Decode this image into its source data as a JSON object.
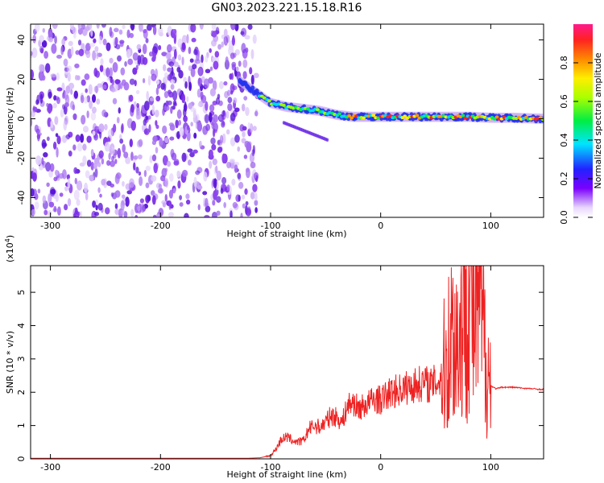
{
  "title": "GN03.2023.221.15.18.R16",
  "colors": {
    "signal": "#ee2222",
    "axis": "#000000",
    "noise": "#7a2ee6"
  },
  "chart_data": [
    {
      "type": "heatmap",
      "title": "GN03.2023.221.15.18.R16",
      "xlabel": "Height of straight line (km)",
      "ylabel": "Frequency (Hz)",
      "xlim": [
        -318,
        148
      ],
      "ylim": [
        -50,
        48
      ],
      "x_ticks": [
        -300,
        -200,
        -100,
        0,
        100
      ],
      "x_tick_labels": [
        "-300",
        "-200",
        "-100",
        "0",
        "100"
      ],
      "y_ticks": [
        -40,
        -20,
        0,
        20,
        40
      ],
      "y_tick_labels": [
        "-40",
        "-20",
        "0",
        "20",
        "40"
      ],
      "colorbar": {
        "label": "Normalized spectral amplitude",
        "range": [
          0,
          1
        ],
        "ticks": [
          0.0,
          0.2,
          0.4,
          0.6,
          0.8
        ],
        "tick_labels": [
          "0.0",
          "0.2",
          "0.4",
          "0.6",
          "0.8"
        ]
      },
      "ridge": {
        "x": [
          -130,
          -115,
          -100,
          -85,
          -70,
          -55,
          -40,
          -25,
          -10,
          0,
          20,
          40,
          60,
          80,
          100,
          120,
          148
        ],
        "freq": [
          20,
          14,
          8,
          6,
          5,
          4,
          2,
          1,
          1,
          1,
          1,
          1,
          1,
          1,
          0.5,
          0.5,
          0
        ]
      },
      "noise_band_x": [
        -318,
        -112
      ]
    },
    {
      "type": "line",
      "xlabel": "Height of straight line (km)",
      "ylabel": "SNR (10 * v/v)",
      "y_scale_note": "(x10",
      "y_scale_exp": "4",
      "y_scale_close": ")",
      "xlim": [
        -318,
        148
      ],
      "ylim": [
        0,
        5.8
      ],
      "x_ticks": [
        -300,
        -200,
        -100,
        0,
        100
      ],
      "x_tick_labels": [
        "-300",
        "-200",
        "-100",
        "0",
        "100"
      ],
      "y_ticks": [
        0,
        1,
        2,
        3,
        4,
        5
      ],
      "y_tick_labels": [
        "0",
        "1",
        "2",
        "3",
        "4",
        "5"
      ],
      "series": [
        {
          "x": [
            -318,
            -120,
            -110,
            -100,
            -95,
            -90,
            -85,
            -80,
            -75,
            -70,
            -65,
            -60,
            -55,
            -50,
            -45,
            -40,
            -35,
            -30,
            -25,
            -20,
            -15,
            -10,
            -5,
            0,
            5,
            10,
            20,
            30,
            40,
            45,
            50,
            55,
            60,
            65,
            70,
            75,
            80,
            85,
            90,
            95,
            100,
            105,
            110,
            120,
            130,
            140,
            148
          ],
          "y": [
            0.02,
            0.02,
            0.03,
            0.1,
            0.3,
            0.6,
            0.65,
            0.55,
            0.5,
            0.55,
            0.9,
            1.0,
            0.95,
            1.1,
            1.3,
            1.25,
            1.1,
            1.6,
            1.7,
            1.5,
            1.6,
            1.7,
            1.8,
            1.75,
            1.9,
            2.0,
            2.1,
            2.2,
            2.3,
            2.2,
            2.3,
            2.4,
            3.0,
            3.8,
            3.5,
            4.2,
            5.5,
            4.0,
            4.8,
            3.2,
            2.2,
            2.1,
            2.15,
            2.15,
            2.12,
            2.1,
            2.08
          ]
        }
      ]
    }
  ]
}
